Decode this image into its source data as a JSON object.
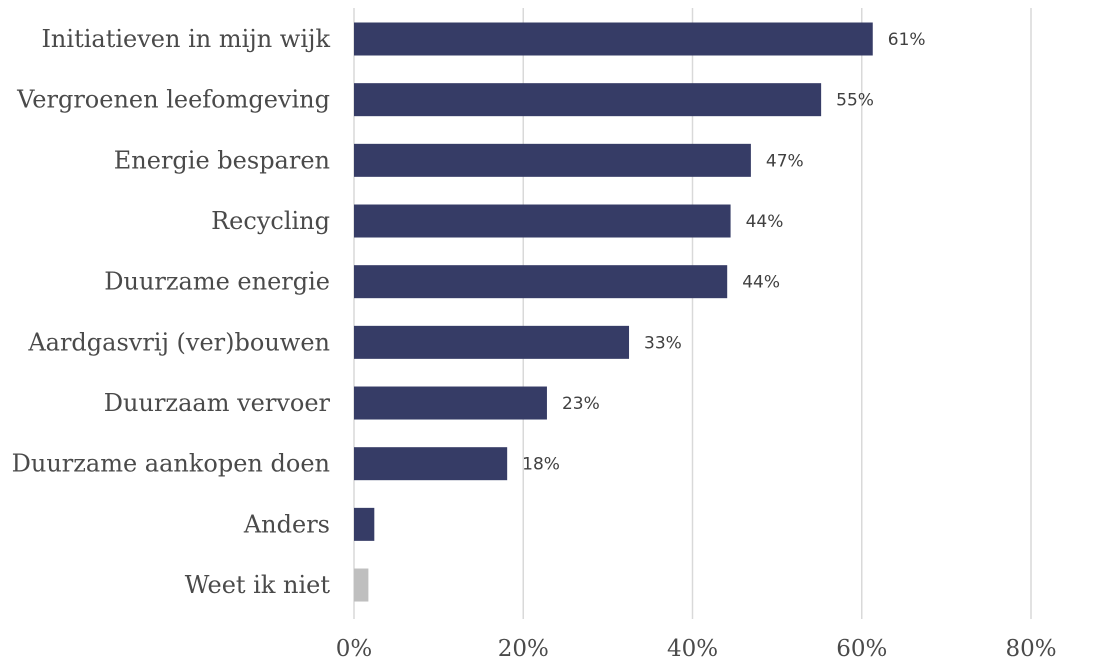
{
  "chart_data": {
    "type": "bar",
    "orientation": "horizontal",
    "categories": [
      "Initiatieven in mijn wijk",
      "Vergroenen leefomgeving",
      "Energie besparen",
      "Recycling",
      "Duurzame energie",
      "Aardgasvrij (ver)bouwen",
      "Duurzaam vervoer",
      "Duurzame aankopen doen",
      "Anders",
      "Weet ik niet"
    ],
    "values": [
      61.3,
      55.2,
      46.9,
      44.5,
      44.1,
      32.5,
      22.8,
      18.1,
      2.4,
      1.7
    ],
    "data_labels": [
      "61%",
      "55%",
      "47%",
      "44%",
      "44%",
      "33%",
      "23%",
      "18%",
      "",
      ""
    ],
    "bar_colors": [
      "#363c66",
      "#363c66",
      "#363c66",
      "#363c66",
      "#363c66",
      "#363c66",
      "#363c66",
      "#363c66",
      "#363c66",
      "#bfbfbf"
    ],
    "xlim": [
      0,
      80
    ],
    "xticks": [
      0,
      20,
      40,
      60,
      80
    ],
    "xtick_labels": [
      "0%",
      "20%",
      "40%",
      "60%",
      "80%"
    ],
    "grid": true,
    "title": "",
    "xlabel": "",
    "ylabel": ""
  }
}
